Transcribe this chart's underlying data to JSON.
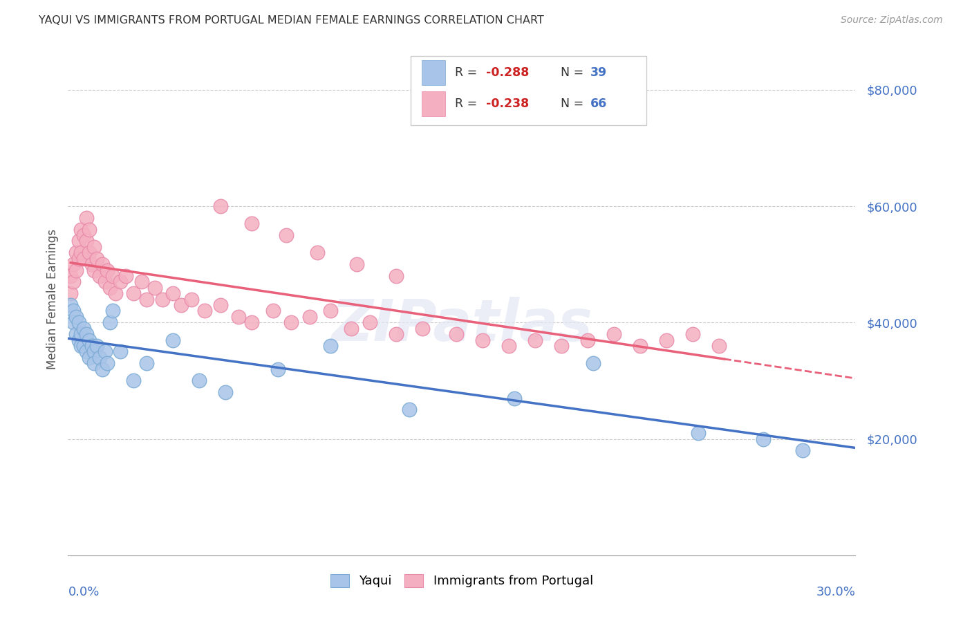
{
  "title": "YAQUI VS IMMIGRANTS FROM PORTUGAL MEDIAN FEMALE EARNINGS CORRELATION CHART",
  "source": "Source: ZipAtlas.com",
  "ylabel": "Median Female Earnings",
  "xlim": [
    0.0,
    0.3
  ],
  "ylim": [
    0,
    88000
  ],
  "yaqui_color": "#a8c4e8",
  "portugal_color": "#f4afc0",
  "yaqui_edge_color": "#7aaad4",
  "portugal_edge_color": "#e88aaa",
  "yaqui_line_color": "#4472c4",
  "portugal_line_color": "#e8607a",
  "legend_R1": "-0.288",
  "legend_N1": "39",
  "legend_R2": "-0.238",
  "legend_N2": "66",
  "watermark": "ZIPatlas",
  "yaqui_x": [
    0.001,
    0.002,
    0.002,
    0.003,
    0.003,
    0.004,
    0.004,
    0.005,
    0.005,
    0.006,
    0.006,
    0.007,
    0.007,
    0.008,
    0.008,
    0.009,
    0.01,
    0.01,
    0.011,
    0.012,
    0.013,
    0.014,
    0.015,
    0.016,
    0.017,
    0.02,
    0.025,
    0.03,
    0.04,
    0.05,
    0.06,
    0.08,
    0.1,
    0.13,
    0.17,
    0.2,
    0.24,
    0.265,
    0.28
  ],
  "yaqui_y": [
    43000,
    42000,
    40000,
    41000,
    38000,
    40000,
    37000,
    38000,
    36000,
    39000,
    36000,
    38000,
    35000,
    37000,
    34000,
    36000,
    35000,
    33000,
    36000,
    34000,
    32000,
    35000,
    33000,
    40000,
    42000,
    35000,
    30000,
    33000,
    37000,
    30000,
    28000,
    32000,
    36000,
    25000,
    27000,
    33000,
    21000,
    20000,
    18000
  ],
  "portugal_x": [
    0.001,
    0.001,
    0.002,
    0.002,
    0.003,
    0.003,
    0.004,
    0.004,
    0.005,
    0.005,
    0.006,
    0.006,
    0.007,
    0.007,
    0.008,
    0.008,
    0.009,
    0.01,
    0.01,
    0.011,
    0.012,
    0.013,
    0.014,
    0.015,
    0.016,
    0.017,
    0.018,
    0.02,
    0.022,
    0.025,
    0.028,
    0.03,
    0.033,
    0.036,
    0.04,
    0.043,
    0.047,
    0.052,
    0.058,
    0.065,
    0.07,
    0.078,
    0.085,
    0.092,
    0.1,
    0.108,
    0.115,
    0.125,
    0.135,
    0.148,
    0.158,
    0.168,
    0.178,
    0.188,
    0.198,
    0.208,
    0.218,
    0.228,
    0.238,
    0.248,
    0.058,
    0.07,
    0.083,
    0.095,
    0.11,
    0.125
  ],
  "portugal_y": [
    48000,
    45000,
    50000,
    47000,
    52000,
    49000,
    54000,
    51000,
    56000,
    52000,
    55000,
    51000,
    58000,
    54000,
    56000,
    52000,
    50000,
    53000,
    49000,
    51000,
    48000,
    50000,
    47000,
    49000,
    46000,
    48000,
    45000,
    47000,
    48000,
    45000,
    47000,
    44000,
    46000,
    44000,
    45000,
    43000,
    44000,
    42000,
    43000,
    41000,
    40000,
    42000,
    40000,
    41000,
    42000,
    39000,
    40000,
    38000,
    39000,
    38000,
    37000,
    36000,
    37000,
    36000,
    37000,
    38000,
    36000,
    37000,
    38000,
    36000,
    60000,
    57000,
    55000,
    52000,
    50000,
    48000
  ]
}
